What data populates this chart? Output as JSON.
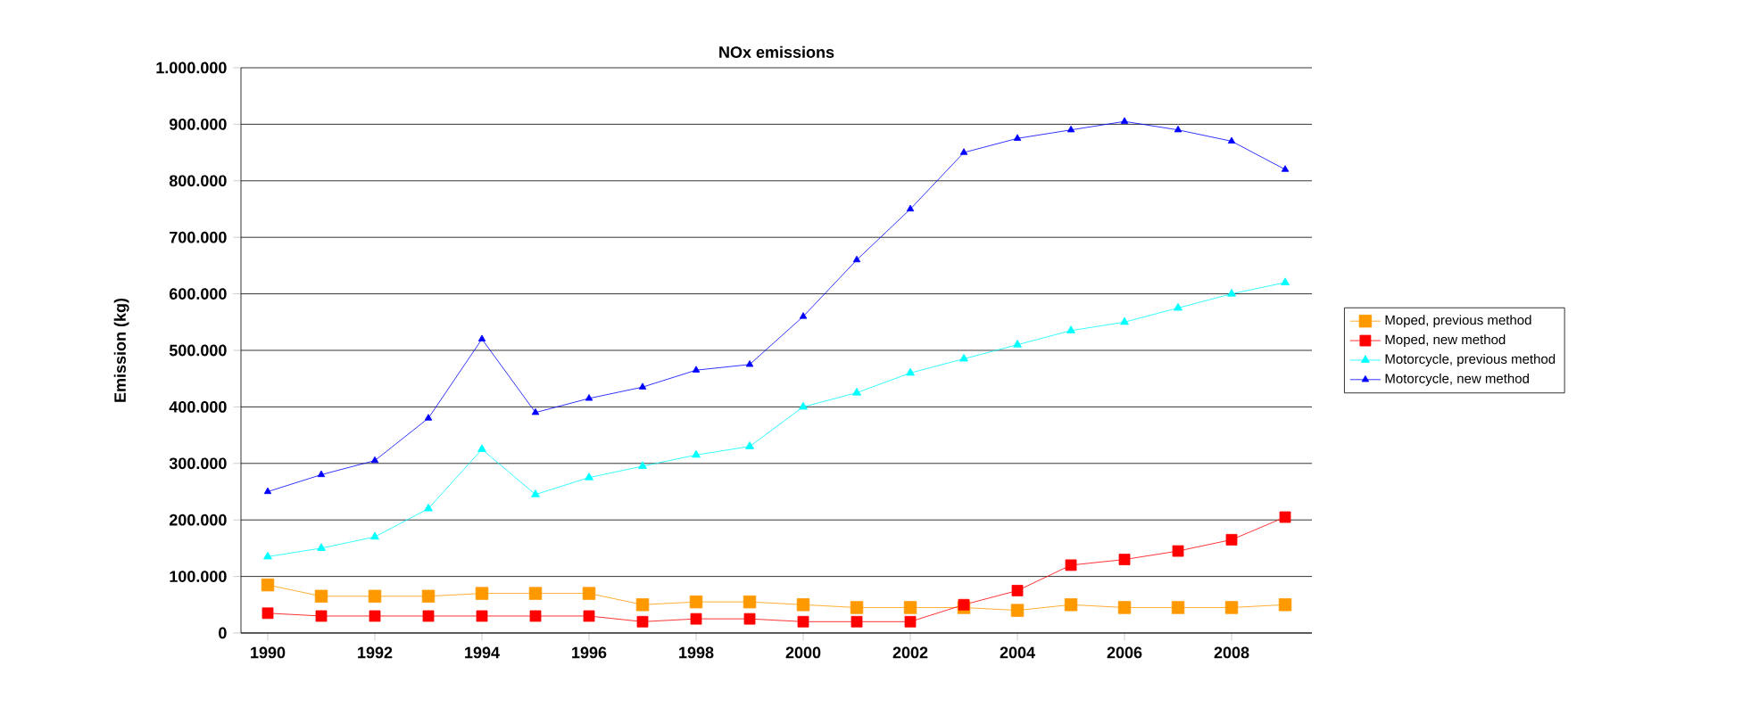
{
  "chart_data": {
    "type": "line",
    "title": "NOx emissions",
    "ylabel": "Emission (kg)",
    "x": [
      1990,
      1991,
      1992,
      1993,
      1994,
      1995,
      1996,
      1997,
      1998,
      1999,
      2000,
      2001,
      2002,
      2003,
      2004,
      2005,
      2006,
      2007,
      2008,
      2009
    ],
    "xlim": [
      1989.5,
      2009.5
    ],
    "xticks": [
      1990,
      1992,
      1994,
      1996,
      1998,
      2000,
      2002,
      2004,
      2006,
      2008
    ],
    "ylim": [
      0,
      1000000
    ],
    "yticks": [
      0,
      {
        "value": 100000,
        "label": "100.000"
      },
      {
        "value": 200000,
        "label": "200.000"
      },
      {
        "value": 300000,
        "label": "300.000"
      },
      {
        "value": 400000,
        "label": "400.000"
      },
      {
        "value": 500000,
        "label": "500.000"
      },
      {
        "value": 600000,
        "label": "600.000"
      },
      {
        "value": 700000,
        "label": "700.000"
      },
      {
        "value": 800000,
        "label": "800.000"
      },
      {
        "value": 900000,
        "label": "900.000"
      },
      {
        "value": 1000000,
        "label": "1.000.000"
      }
    ],
    "grid": "y",
    "legend": "right",
    "series": [
      {
        "name": "Moped, previous method",
        "color": "#ff9900",
        "marker": "square",
        "values": [
          85000,
          65000,
          65000,
          65000,
          70000,
          70000,
          70000,
          50000,
          55000,
          55000,
          50000,
          45000,
          45000,
          45000,
          40000,
          50000,
          45000,
          45000,
          45000,
          50000
        ]
      },
      {
        "name": "Moped, new method",
        "color": "#ff0000",
        "marker": "square",
        "values": [
          35000,
          30000,
          30000,
          30000,
          30000,
          30000,
          30000,
          20000,
          25000,
          25000,
          20000,
          20000,
          20000,
          50000,
          75000,
          120000,
          130000,
          145000,
          165000,
          205000
        ]
      },
      {
        "name": "Motorcycle, previous method",
        "color": "#00ffff",
        "marker": "triangle",
        "values": [
          135000,
          150000,
          170000,
          220000,
          325000,
          245000,
          275000,
          295000,
          315000,
          330000,
          400000,
          425000,
          460000,
          485000,
          510000,
          535000,
          550000,
          575000,
          600000,
          620000
        ]
      },
      {
        "name": "Motorcycle, new method",
        "color": "#0000ff",
        "marker": "triangle",
        "values": [
          250000,
          280000,
          305000,
          380000,
          520000,
          390000,
          415000,
          435000,
          465000,
          475000,
          560000,
          660000,
          750000,
          850000,
          875000,
          890000,
          905000,
          890000,
          870000,
          820000
        ]
      }
    ]
  }
}
